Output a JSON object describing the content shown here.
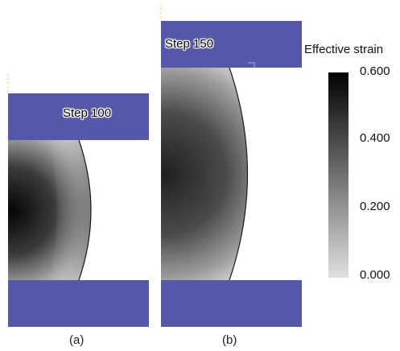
{
  "panels": [
    {
      "id": "a",
      "step_label": "Step 100",
      "caption": "(a)"
    },
    {
      "id": "b",
      "step_label": "Step 150",
      "caption": "(b)"
    }
  ],
  "legend": {
    "title": "Effective strain",
    "ticks": [
      "0.600",
      "0.400",
      "0.200",
      "0.000"
    ],
    "range": [
      0.0,
      0.6
    ]
  },
  "colors": {
    "die": "#5558a8",
    "strain_high": "#000000",
    "strain_low": "#e0e0e0"
  }
}
